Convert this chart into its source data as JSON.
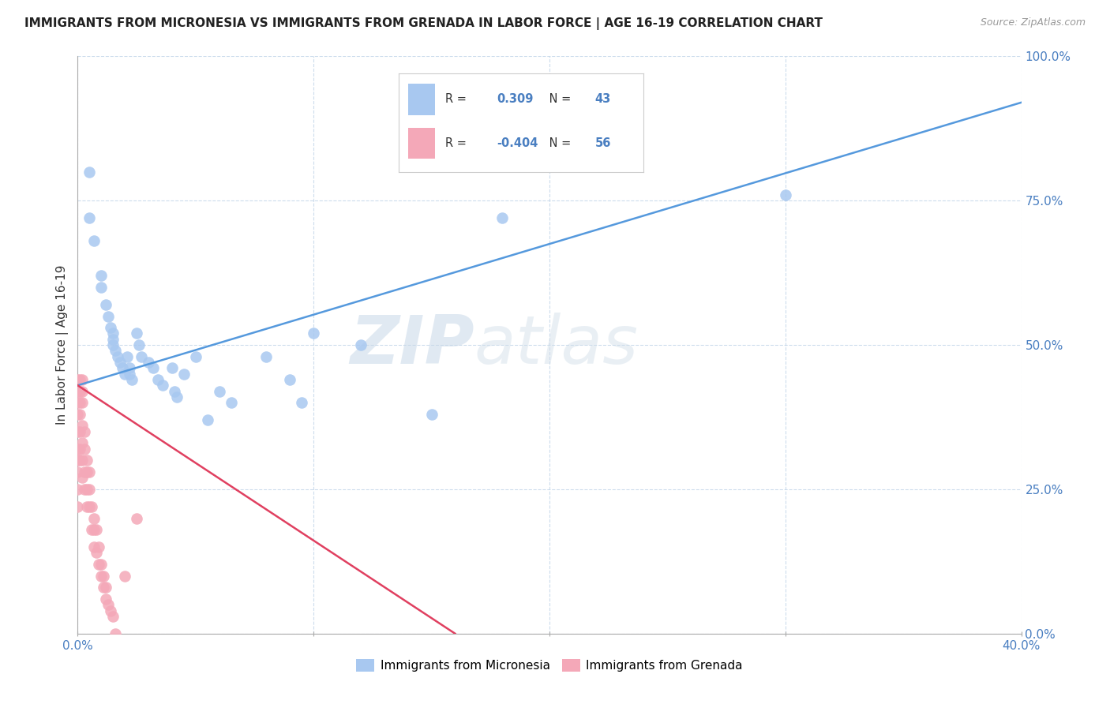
{
  "title": "IMMIGRANTS FROM MICRONESIA VS IMMIGRANTS FROM GRENADA IN LABOR FORCE | AGE 16-19 CORRELATION CHART",
  "source": "Source: ZipAtlas.com",
  "ylabel": "In Labor Force | Age 16-19",
  "xlim": [
    0.0,
    0.4
  ],
  "ylim": [
    0.0,
    1.0
  ],
  "xtick_positions": [
    0.0,
    0.1,
    0.2,
    0.3,
    0.4
  ],
  "xtick_labels": [
    "0.0%",
    "",
    "",
    "",
    "40.0%"
  ],
  "ytick_positions": [
    0.0,
    0.25,
    0.5,
    0.75,
    1.0
  ],
  "ytick_labels": [
    "0.0%",
    "25.0%",
    "50.0%",
    "75.0%",
    "100.0%"
  ],
  "micronesia_color": "#a8c8f0",
  "grenada_color": "#f4a8b8",
  "micronesia_line_color": "#5599dd",
  "grenada_line_color": "#e04060",
  "R_micronesia": 0.309,
  "N_micronesia": 43,
  "R_grenada": -0.404,
  "N_grenada": 56,
  "watermark_zip": "ZIP",
  "watermark_atlas": "atlas",
  "micronesia_x": [
    0.005,
    0.005,
    0.007,
    0.01,
    0.01,
    0.012,
    0.013,
    0.014,
    0.015,
    0.015,
    0.015,
    0.016,
    0.017,
    0.018,
    0.019,
    0.02,
    0.021,
    0.022,
    0.022,
    0.023,
    0.025,
    0.026,
    0.027,
    0.03,
    0.032,
    0.034,
    0.036,
    0.04,
    0.041,
    0.042,
    0.045,
    0.05,
    0.055,
    0.06,
    0.065,
    0.08,
    0.09,
    0.095,
    0.1,
    0.12,
    0.15,
    0.18,
    0.3
  ],
  "micronesia_y": [
    0.8,
    0.72,
    0.68,
    0.62,
    0.6,
    0.57,
    0.55,
    0.53,
    0.52,
    0.51,
    0.5,
    0.49,
    0.48,
    0.47,
    0.46,
    0.45,
    0.48,
    0.46,
    0.45,
    0.44,
    0.52,
    0.5,
    0.48,
    0.47,
    0.46,
    0.44,
    0.43,
    0.46,
    0.42,
    0.41,
    0.45,
    0.48,
    0.37,
    0.42,
    0.4,
    0.48,
    0.44,
    0.4,
    0.52,
    0.5,
    0.38,
    0.72,
    0.76
  ],
  "grenada_x": [
    0.0,
    0.0,
    0.0,
    0.0,
    0.0,
    0.0,
    0.0,
    0.0,
    0.0,
    0.0,
    0.001,
    0.001,
    0.001,
    0.001,
    0.001,
    0.001,
    0.001,
    0.002,
    0.002,
    0.002,
    0.002,
    0.002,
    0.002,
    0.002,
    0.003,
    0.003,
    0.003,
    0.003,
    0.004,
    0.004,
    0.004,
    0.004,
    0.005,
    0.005,
    0.005,
    0.006,
    0.006,
    0.007,
    0.007,
    0.007,
    0.008,
    0.008,
    0.009,
    0.009,
    0.01,
    0.01,
    0.011,
    0.011,
    0.012,
    0.012,
    0.013,
    0.014,
    0.015,
    0.016,
    0.02,
    0.025
  ],
  "grenada_y": [
    0.44,
    0.42,
    0.4,
    0.38,
    0.35,
    0.32,
    0.3,
    0.28,
    0.25,
    0.22,
    0.44,
    0.42,
    0.4,
    0.38,
    0.35,
    0.32,
    0.3,
    0.44,
    0.42,
    0.4,
    0.36,
    0.33,
    0.3,
    0.27,
    0.35,
    0.32,
    0.28,
    0.25,
    0.3,
    0.28,
    0.25,
    0.22,
    0.28,
    0.25,
    0.22,
    0.22,
    0.18,
    0.2,
    0.18,
    0.15,
    0.18,
    0.14,
    0.15,
    0.12,
    0.12,
    0.1,
    0.1,
    0.08,
    0.08,
    0.06,
    0.05,
    0.04,
    0.03,
    0.0,
    0.1,
    0.2
  ],
  "mic_line_x0": 0.0,
  "mic_line_y0": 0.43,
  "mic_line_x1": 0.4,
  "mic_line_y1": 0.92,
  "gren_line_x0": 0.0,
  "gren_line_y0": 0.43,
  "gren_line_x1": 0.16,
  "gren_line_y1": 0.0
}
